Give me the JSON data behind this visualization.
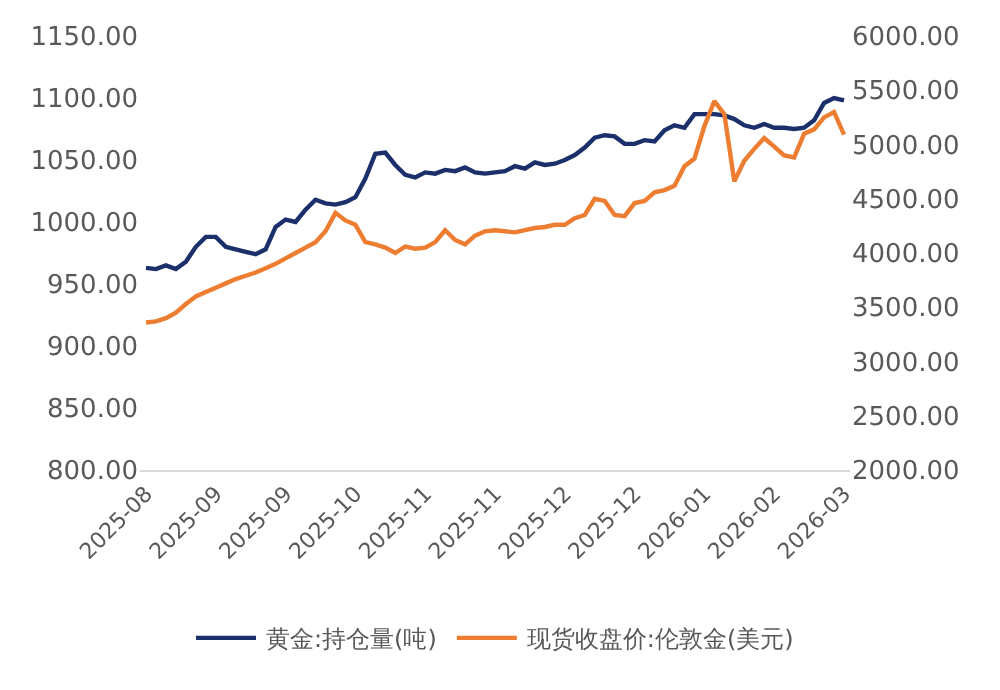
{
  "chart_data": {
    "type": "line",
    "categories": [
      "2025-08",
      null,
      null,
      null,
      null,
      null,
      null,
      "2025-09",
      null,
      null,
      null,
      null,
      null,
      null,
      "2025-09",
      null,
      null,
      null,
      null,
      null,
      null,
      "2025-10",
      null,
      null,
      null,
      null,
      null,
      null,
      "2025-11",
      null,
      null,
      null,
      null,
      null,
      null,
      "2025-11",
      null,
      null,
      null,
      null,
      null,
      null,
      "2025-12",
      null,
      null,
      null,
      null,
      null,
      null,
      "2025-12",
      null,
      null,
      null,
      null,
      null,
      null,
      "2026-01",
      null,
      null,
      null,
      null,
      null,
      null,
      "2026-02",
      null,
      null,
      null,
      null,
      null,
      null,
      "2026-03"
    ],
    "series": [
      {
        "name": "黄金:持仓量(吨)",
        "color": "#1b2f6b",
        "values": [
          963,
          962,
          965,
          962,
          968,
          980,
          988,
          988,
          980,
          978,
          976,
          974,
          978,
          996,
          1002,
          1000,
          1010,
          1018,
          1015,
          1014,
          1016,
          1020,
          1035,
          1055,
          1056,
          1046,
          1038,
          1036,
          1040,
          1039,
          1042,
          1041,
          1044,
          1040,
          1039,
          1040,
          1041,
          1045,
          1043,
          1048,
          1046,
          1047,
          1050,
          1054,
          1060,
          1068,
          1070,
          1069,
          1063,
          1063,
          1066,
          1065,
          1074,
          1078,
          1076,
          1087,
          1087,
          1087,
          1086,
          1083,
          1078,
          1076,
          1079,
          1076,
          1076,
          1075,
          1076,
          1082,
          1096,
          1100,
          1098
        ]
      },
      {
        "name": "现货收盘价:伦敦金(美元)",
        "color": "#ed7d31",
        "axis": "y2",
        "values": [
          3360,
          3370,
          3400,
          3450,
          3530,
          3600,
          3640,
          3680,
          3720,
          3760,
          3790,
          3820,
          3860,
          3900,
          3950,
          4000,
          4050,
          4100,
          4200,
          4370,
          4300,
          4260,
          4100,
          4080,
          4050,
          4000,
          4060,
          4040,
          4050,
          4100,
          4210,
          4120,
          4080,
          4160,
          4200,
          4210,
          4200,
          4190,
          4210,
          4230,
          4240,
          4260,
          4260,
          4320,
          4350,
          4500,
          4480,
          4350,
          4340,
          4460,
          4480,
          4560,
          4580,
          4620,
          4800,
          4870,
          5170,
          5400,
          5280,
          4660,
          4850,
          4960,
          5060,
          4980,
          4900,
          4880,
          5100,
          5140,
          5250,
          5300,
          5090
        ]
      }
    ],
    "ylim": [
      800,
      1150
    ],
    "yticks": [
      {
        "value": 800,
        "label": "800.00"
      },
      {
        "value": 850,
        "label": "850.00"
      },
      {
        "value": 900,
        "label": "900.00"
      },
      {
        "value": 950,
        "label": "950.00"
      },
      {
        "value": 1000,
        "label": "1000.00"
      },
      {
        "value": 1050,
        "label": "1050.00"
      },
      {
        "value": 1100,
        "label": "1100.00"
      },
      {
        "value": 1150,
        "label": "1150.00"
      }
    ],
    "y2lim": [
      2000,
      6000
    ],
    "y2ticks": [
      {
        "value": 2000,
        "label": "2000.00"
      },
      {
        "value": 2500,
        "label": "2500.00"
      },
      {
        "value": 3000,
        "label": "3000.00"
      },
      {
        "value": 3500,
        "label": "3500.00"
      },
      {
        "value": 4000,
        "label": "4000.00"
      },
      {
        "value": 4500,
        "label": "4500.00"
      },
      {
        "value": 5000,
        "label": "5000.00"
      },
      {
        "value": 5500,
        "label": "5500.00"
      },
      {
        "value": 6000,
        "label": "6000.00"
      }
    ],
    "grid": false,
    "legend": "bottom",
    "marker": "none",
    "line_style": "solid"
  }
}
